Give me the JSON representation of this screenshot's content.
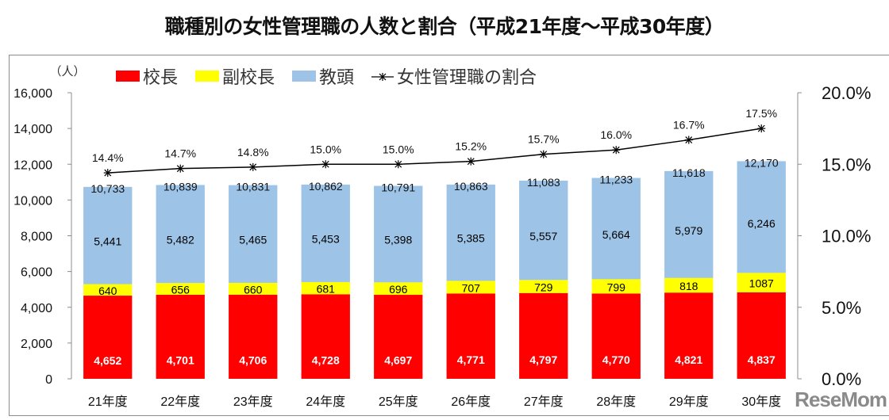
{
  "chart_data": {
    "type": "bar",
    "stacked": true,
    "title": "職種別の女性管理職の人数と割合（平成21年度～平成30年度）",
    "unit_label": "（人）",
    "categories": [
      "21年度",
      "22年度",
      "23年度",
      "24年度",
      "25年度",
      "26年度",
      "27年度",
      "28年度",
      "29年度",
      "30年度"
    ],
    "series": [
      {
        "name": "校長",
        "color": "#ff0000",
        "label_color": "#ffffff",
        "values": [
          4652,
          4701,
          4706,
          4728,
          4697,
          4771,
          4797,
          4770,
          4821,
          4837
        ],
        "labels": [
          "4,652",
          "4,701",
          "4,706",
          "4,728",
          "4,697",
          "4,771",
          "4,797",
          "4,770",
          "4,821",
          "4,837"
        ]
      },
      {
        "name": "副校長",
        "color": "#ffff00",
        "label_color": "#000000",
        "values": [
          640,
          656,
          660,
          681,
          696,
          707,
          729,
          799,
          818,
          1087
        ],
        "labels": [
          "640",
          "656",
          "660",
          "681",
          "696",
          "707",
          "729",
          "799",
          "818",
          "1087"
        ]
      },
      {
        "name": "教頭",
        "color": "#9dc3e6",
        "label_color": "#000000",
        "values": [
          5441,
          5482,
          5465,
          5453,
          5398,
          5385,
          5557,
          5664,
          5979,
          6246
        ],
        "labels": [
          "5,441",
          "5,482",
          "5,465",
          "5,453",
          "5,398",
          "5,385",
          "5,557",
          "5,664",
          "5,979",
          "6,246"
        ]
      }
    ],
    "totals": {
      "values": [
        10733,
        10839,
        10831,
        10862,
        10791,
        10863,
        11083,
        11233,
        11618,
        12170
      ],
      "labels": [
        "10,733",
        "10,839",
        "10,831",
        "10,862",
        "10,791",
        "10,863",
        "11,083",
        "11,233",
        "11,618",
        "12,170"
      ]
    },
    "line_series": {
      "name": "女性管理職の割合",
      "axis": "right",
      "color": "#000000",
      "marker": "asterisk",
      "values": [
        14.4,
        14.7,
        14.8,
        15.0,
        15.0,
        15.2,
        15.7,
        16.0,
        16.7,
        17.5
      ],
      "labels": [
        "14.4%",
        "14.7%",
        "14.8%",
        "15.0%",
        "15.0%",
        "15.2%",
        "15.7%",
        "16.0%",
        "16.7%",
        "17.5%"
      ]
    },
    "y_left": {
      "min": 0,
      "max": 16000,
      "step": 2000,
      "tick_labels": [
        "0",
        "2,000",
        "4,000",
        "6,000",
        "8,000",
        "10,000",
        "12,000",
        "14,000",
        "16,000"
      ]
    },
    "y_right": {
      "min": 0,
      "max": 20,
      "step": 5,
      "tick_labels": [
        "0.0%",
        "5.0%",
        "10.0%",
        "15.0%",
        "20.0%"
      ]
    },
    "legend": {
      "position": "top",
      "entries": [
        {
          "label": "校長",
          "kind": "box",
          "color": "#ff0000"
        },
        {
          "label": "副校長",
          "kind": "box",
          "color": "#ffff00"
        },
        {
          "label": "教頭",
          "kind": "box",
          "color": "#9dc3e6"
        },
        {
          "label": "女性管理職の割合",
          "kind": "line-marker",
          "color": "#000000"
        }
      ]
    },
    "grid": false
  },
  "watermark": "ReseMom"
}
